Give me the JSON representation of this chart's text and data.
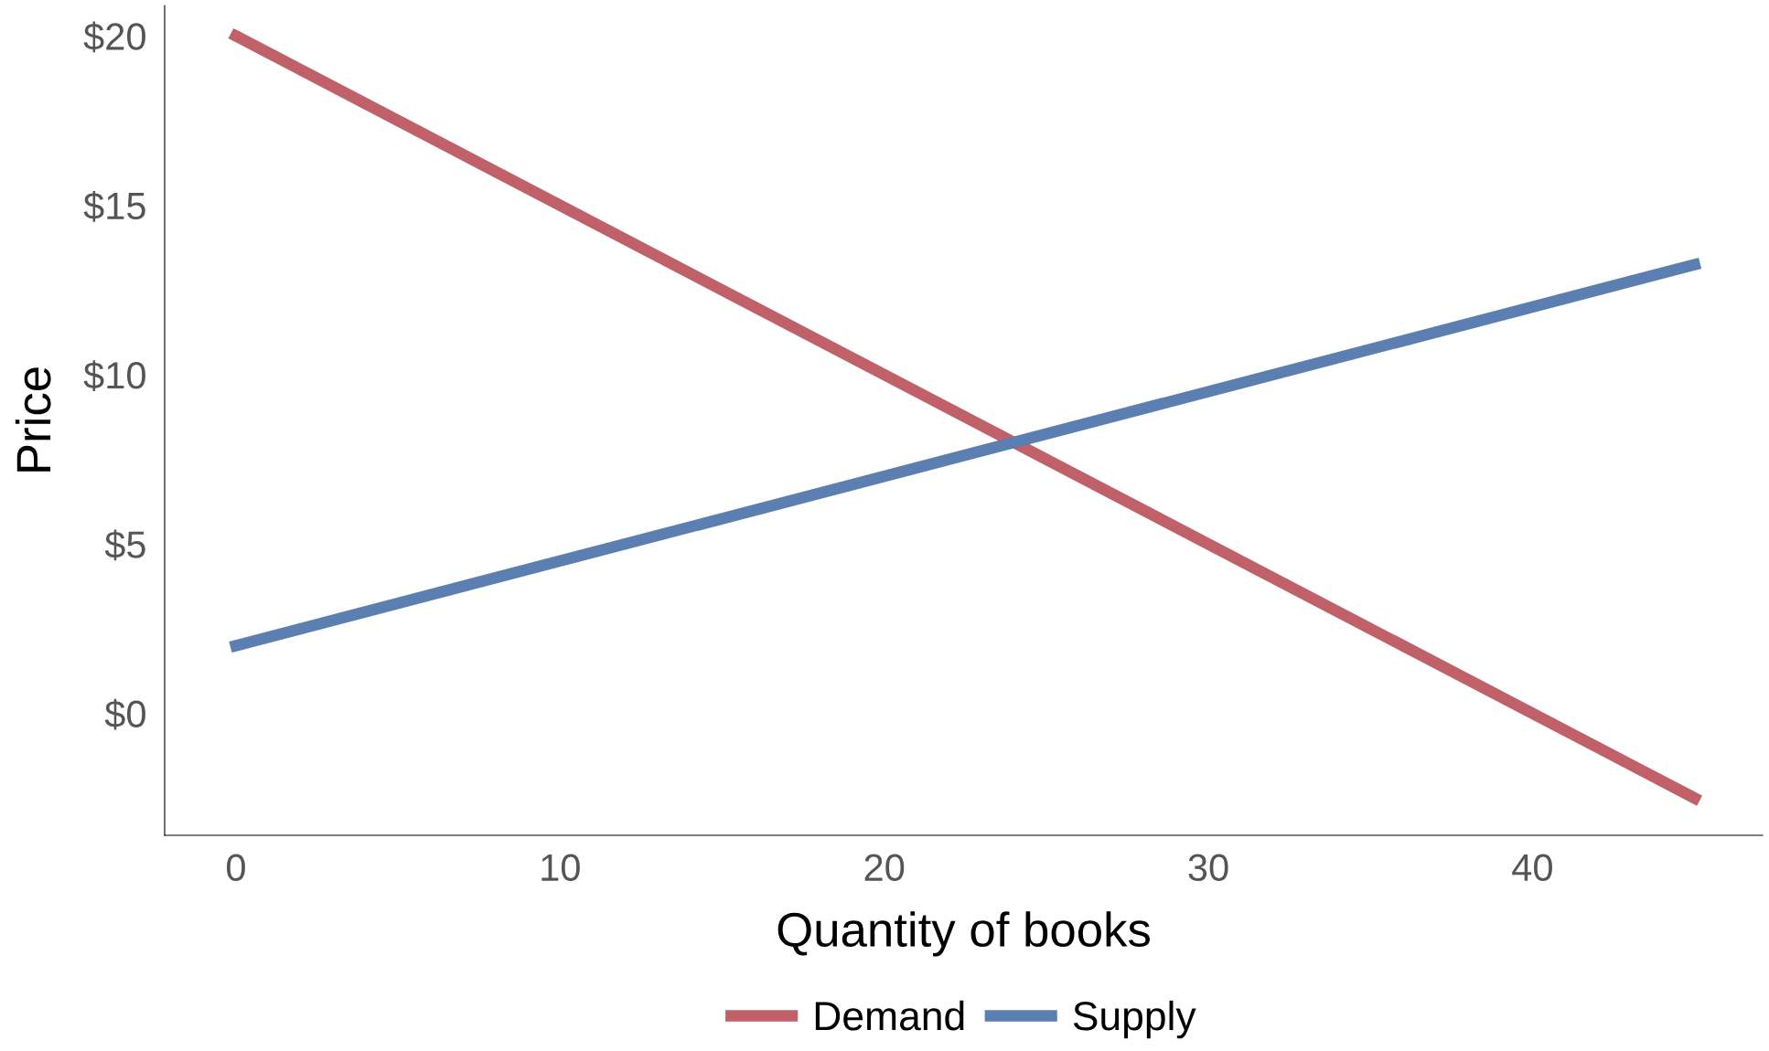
{
  "chart_data": {
    "type": "line",
    "xlabel": "Quantity of books",
    "ylabel": "Price",
    "x": [
      0,
      45
    ],
    "series": [
      {
        "name": "Demand",
        "color": "#c0616a",
        "values": [
          20,
          -2.5
        ]
      },
      {
        "name": "Supply",
        "color": "#5b7fb0",
        "values": [
          2,
          13.25
        ]
      }
    ],
    "xlim": [
      -2.2,
      47.1
    ],
    "ylim": [
      -3.6,
      20.9
    ],
    "xticks": [
      0,
      10,
      20,
      30,
      40
    ],
    "yticks": [
      {
        "value": 0,
        "label": "$0"
      },
      {
        "value": 5,
        "label": "$5"
      },
      {
        "value": 10,
        "label": "$10"
      },
      {
        "value": 15,
        "label": "$15"
      },
      {
        "value": 20,
        "label": "$20"
      }
    ],
    "grid": false,
    "legend": "bottom",
    "line_style": "solid"
  }
}
